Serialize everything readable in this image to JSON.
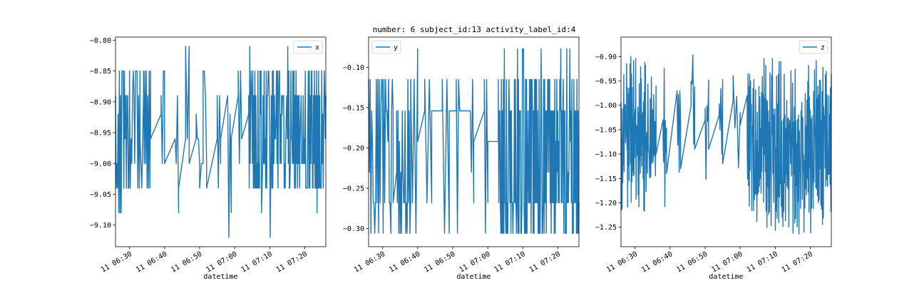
{
  "figure_title": "number: 6 subject_id:13 activity_label_id:4",
  "accent_color": "#1f77b4",
  "chart_data": [
    {
      "type": "line",
      "name": "x",
      "xlabel": "datetime",
      "ylabel": "",
      "legend": "top-right",
      "grid": false,
      "x_start": "06:26",
      "x_end": "07:26",
      "ylim": [
        -9.135,
        -8.795
      ],
      "x_ticks": [
        "06:30",
        "06:40",
        "06:50",
        "07:00",
        "07:10",
        "07:20"
      ],
      "x_tick_labels": [
        "11 06:30",
        "11 06:40",
        "11 06:50",
        "11 07:00",
        "11 07:10",
        "11 07:20"
      ],
      "y_ticks": [
        -8.8,
        -8.85,
        -8.9,
        -8.95,
        -9.0,
        -9.05,
        -9.1
      ],
      "y_tick_labels": [
        "−8.80",
        "−8.85",
        "−8.90",
        "−8.95",
        "−9.00",
        "−9.05",
        "−9.10"
      ],
      "levels": [
        -8.81,
        -8.85,
        -8.89,
        -8.92,
        -8.96,
        -9.0,
        -9.04,
        -9.08,
        -9.12
      ],
      "series": [
        {
          "name": "x",
          "segments": [
            {
              "start": "06:26",
              "end": "06:30",
              "density": 22,
              "min": -9.08,
              "max": -8.85,
              "sparse": [
                -9.08
              ]
            },
            {
              "start": "06:30",
              "end": "06:33",
              "density": 14,
              "min": -9.04,
              "max": -8.85
            },
            {
              "start": "06:33",
              "end": "06:34",
              "density": 2,
              "min": -9.04,
              "max": -8.85,
              "sparse": [
                -9.08
              ]
            },
            {
              "start": "06:34",
              "end": "06:36",
              "density": 10,
              "min": -9.04,
              "max": -8.85,
              "sparse": [
                -9.08
              ]
            },
            {
              "start": "06:36",
              "end": "06:39",
              "density": 0,
              "min": -8.96,
              "max": -8.92
            },
            {
              "start": "06:39",
              "end": "06:40",
              "density": 3,
              "min": -9.04,
              "max": -8.85
            },
            {
              "start": "06:40",
              "end": "06:43",
              "density": 0,
              "min": -9.0,
              "max": -8.96
            },
            {
              "start": "06:43",
              "end": "06:44",
              "density": 3,
              "min": -9.08,
              "max": -8.85
            },
            {
              "start": "06:44",
              "end": "06:46",
              "density": 0,
              "min": -9.04,
              "max": -8.96
            },
            {
              "start": "06:46",
              "end": "06:47",
              "density": 2,
              "min": -9.0,
              "max": -8.81
            },
            {
              "start": "06:47",
              "end": "06:49",
              "density": 0,
              "min": -9.0,
              "max": -8.96
            },
            {
              "start": "06:49",
              "end": "06:50",
              "density": 3,
              "min": -9.0,
              "max": -8.89
            },
            {
              "start": "06:50",
              "end": "06:51",
              "density": 2,
              "min": -9.04,
              "max": -9.0
            },
            {
              "start": "06:51",
              "end": "06:52",
              "density": 3,
              "min": -9.04,
              "max": -8.85
            },
            {
              "start": "06:52",
              "end": "06:55",
              "density": 0,
              "min": -9.04,
              "max": -8.96
            },
            {
              "start": "06:55",
              "end": "06:56",
              "density": 3,
              "min": -9.04,
              "max": -8.85
            },
            {
              "start": "06:56",
              "end": "06:58",
              "density": 0,
              "min": -8.96,
              "max": -8.89
            },
            {
              "start": "06:58",
              "end": "06:59",
              "density": 3,
              "min": -9.12,
              "max": -8.89
            },
            {
              "start": "06:59",
              "end": "07:01",
              "density": 0,
              "min": -8.96,
              "max": -8.89
            },
            {
              "start": "07:01",
              "end": "07:02",
              "density": 3,
              "min": -9.0,
              "max": -8.85
            },
            {
              "start": "07:02",
              "end": "07:04",
              "density": 0,
              "min": -8.96,
              "max": -8.92
            },
            {
              "start": "07:04",
              "end": "07:26",
              "density": 150,
              "min": -9.04,
              "max": -8.85,
              "sparse": [
                -8.81,
                -9.08,
                -9.12
              ]
            }
          ]
        }
      ]
    },
    {
      "type": "line",
      "name": "y",
      "xlabel": "datetime",
      "ylabel": "",
      "legend": "top-left",
      "grid": false,
      "x_start": "06:26",
      "x_end": "07:26",
      "ylim": [
        -0.3225,
        -0.0625
      ],
      "x_ticks": [
        "06:30",
        "06:40",
        "06:50",
        "07:00",
        "07:10",
        "07:20"
      ],
      "x_tick_labels": [
        "11 06:30",
        "11 06:40",
        "11 06:50",
        "11 07:00",
        "11 07:10",
        "11 07:20"
      ],
      "y_ticks": [
        -0.1,
        -0.15,
        -0.2,
        -0.25,
        -0.3
      ],
      "y_tick_labels": [
        "−0.10",
        "−0.15",
        "−0.20",
        "−0.25",
        "−0.30"
      ],
      "levels": [
        -0.077,
        -0.115,
        -0.154,
        -0.192,
        -0.23,
        -0.268,
        -0.306
      ],
      "series": [
        {
          "name": "y",
          "segments": [
            {
              "start": "06:26",
              "end": "06:33",
              "density": 32,
              "min": -0.306,
              "max": -0.115
            },
            {
              "start": "06:33",
              "end": "06:34",
              "density": 0,
              "min": -0.268,
              "max": -0.23
            },
            {
              "start": "06:34",
              "end": "06:38",
              "density": 20,
              "min": -0.306,
              "max": -0.115
            },
            {
              "start": "06:38",
              "end": "06:40",
              "density": 4,
              "min": -0.306,
              "max": -0.077
            },
            {
              "start": "06:40",
              "end": "06:42",
              "density": 0,
              "min": -0.192,
              "max": -0.154
            },
            {
              "start": "06:42",
              "end": "06:44",
              "density": 3,
              "min": -0.306,
              "max": -0.077
            },
            {
              "start": "06:44",
              "end": "06:47",
              "density": 0,
              "min": -0.154,
              "max": -0.154
            },
            {
              "start": "06:47",
              "end": "06:49",
              "density": 3,
              "min": -0.306,
              "max": -0.077
            },
            {
              "start": "06:49",
              "end": "06:51",
              "density": 0,
              "min": -0.154,
              "max": -0.154
            },
            {
              "start": "06:51",
              "end": "06:52",
              "density": 3,
              "min": -0.306,
              "max": -0.115
            },
            {
              "start": "06:52",
              "end": "06:55",
              "density": 0,
              "min": -0.154,
              "max": -0.154
            },
            {
              "start": "06:55",
              "end": "06:56",
              "density": 3,
              "min": -0.268,
              "max": -0.115
            },
            {
              "start": "06:56",
              "end": "06:59",
              "density": 0,
              "min": -0.192,
              "max": -0.154
            },
            {
              "start": "06:59",
              "end": "07:00",
              "density": 3,
              "min": -0.306,
              "max": -0.077
            },
            {
              "start": "07:00",
              "end": "07:03",
              "density": 0,
              "min": -0.192,
              "max": -0.192
            },
            {
              "start": "07:03",
              "end": "07:26",
              "density": 160,
              "min": -0.306,
              "max": -0.115,
              "sparse": [
                -0.077
              ]
            }
          ]
        }
      ]
    },
    {
      "type": "line",
      "name": "z",
      "xlabel": "datetime",
      "ylabel": "",
      "legend": "top-right",
      "grid": false,
      "x_start": "06:26",
      "x_end": "07:26",
      "ylim": [
        -1.29,
        -0.86
      ],
      "x_ticks": [
        "06:30",
        "06:40",
        "06:50",
        "07:00",
        "07:10",
        "07:20"
      ],
      "x_tick_labels": [
        "11 06:30",
        "11 06:40",
        "11 06:50",
        "11 07:00",
        "11 07:10",
        "11 07:20"
      ],
      "y_ticks": [
        -0.9,
        -0.95,
        -1.0,
        -1.05,
        -1.1,
        -1.15,
        -1.2,
        -1.25
      ],
      "y_tick_labels": [
        "−0.90",
        "−0.95",
        "−1.00",
        "−1.05",
        "−1.10",
        "−1.15",
        "−1.20",
        "−1.25"
      ],
      "series": [
        {
          "name": "z",
          "segments": [
            {
              "start": "06:26",
              "end": "06:33",
              "density": 70,
              "min": -1.22,
              "max": -0.9
            },
            {
              "start": "06:33",
              "end": "06:36",
              "density": 18,
              "min": -1.18,
              "max": -0.93
            },
            {
              "start": "06:36",
              "end": "06:38",
              "density": 0,
              "min": -1.1,
              "max": -1.03
            },
            {
              "start": "06:38",
              "end": "06:39",
              "density": 6,
              "min": -1.24,
              "max": -0.9
            },
            {
              "start": "06:39",
              "end": "06:42",
              "density": 0,
              "min": -1.14,
              "max": -0.97
            },
            {
              "start": "06:42",
              "end": "06:43",
              "density": 5,
              "min": -1.16,
              "max": -0.92
            },
            {
              "start": "06:43",
              "end": "06:46",
              "density": 0,
              "min": -1.13,
              "max": -1.0
            },
            {
              "start": "06:46",
              "end": "06:47",
              "density": 4,
              "min": -1.1,
              "max": -0.89
            },
            {
              "start": "06:47",
              "end": "06:50",
              "density": 0,
              "min": -1.09,
              "max": -1.03
            },
            {
              "start": "06:50",
              "end": "06:51",
              "density": 4,
              "min": -1.16,
              "max": -0.93
            },
            {
              "start": "06:51",
              "end": "06:54",
              "density": 0,
              "min": -1.09,
              "max": -1.02
            },
            {
              "start": "06:54",
              "end": "06:55",
              "density": 4,
              "min": -1.12,
              "max": -0.92
            },
            {
              "start": "06:55",
              "end": "06:58",
              "density": 0,
              "min": -1.12,
              "max": -0.99
            },
            {
              "start": "06:58",
              "end": "07:00",
              "density": 4,
              "min": -1.15,
              "max": -0.89
            },
            {
              "start": "07:00",
              "end": "07:02",
              "density": 0,
              "min": -1.04,
              "max": -0.98
            },
            {
              "start": "07:02",
              "end": "07:26",
              "density": 200,
              "min": -1.27,
              "max": -0.9
            }
          ]
        }
      ]
    }
  ]
}
